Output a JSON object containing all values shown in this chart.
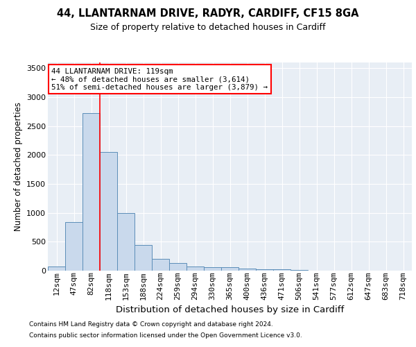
{
  "title1": "44, LLANTARNAM DRIVE, RADYR, CARDIFF, CF15 8GA",
  "title2": "Size of property relative to detached houses in Cardiff",
  "xlabel": "Distribution of detached houses by size in Cardiff",
  "ylabel": "Number of detached properties",
  "footer1": "Contains HM Land Registry data © Crown copyright and database right 2024.",
  "footer2": "Contains public sector information licensed under the Open Government Licence v3.0.",
  "annotation_line1": "44 LLANTARNAM DRIVE: 119sqm",
  "annotation_line2": "← 48% of detached houses are smaller (3,614)",
  "annotation_line3": "51% of semi-detached houses are larger (3,879) →",
  "bar_labels": [
    "12sqm",
    "47sqm",
    "82sqm",
    "118sqm",
    "153sqm",
    "188sqm",
    "224sqm",
    "259sqm",
    "294sqm",
    "330sqm",
    "365sqm",
    "400sqm",
    "436sqm",
    "471sqm",
    "506sqm",
    "541sqm",
    "577sqm",
    "612sqm",
    "647sqm",
    "683sqm",
    "718sqm"
  ],
  "bar_values": [
    75,
    840,
    2720,
    2050,
    1000,
    450,
    210,
    130,
    75,
    60,
    55,
    40,
    30,
    20,
    10,
    5,
    3,
    2,
    1,
    1,
    1
  ],
  "bar_color": "#c9d9ec",
  "bar_edge_color": "#5b8db8",
  "plot_bg_color": "#e8eef5",
  "ylim": [
    0,
    3600
  ],
  "yticks": [
    0,
    500,
    1000,
    1500,
    2000,
    2500,
    3000,
    3500
  ],
  "red_line_bar_index": 3,
  "title1_fontsize": 10.5,
  "title2_fontsize": 9,
  "ylabel_fontsize": 8.5,
  "xlabel_fontsize": 9.5,
  "tick_fontsize": 8,
  "annotation_fontsize": 7.8,
  "footer_fontsize": 6.5
}
